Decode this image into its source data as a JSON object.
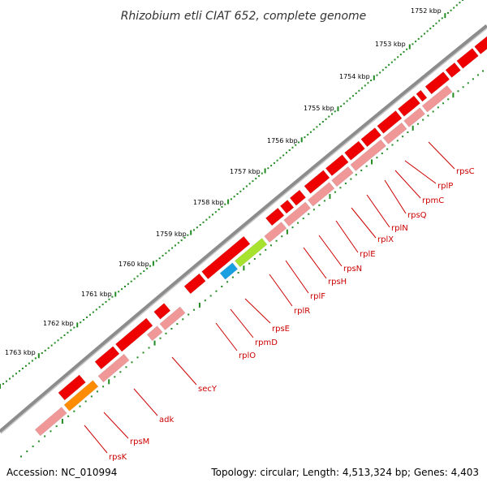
{
  "title": "Rhizobium etli CIAT 652, complete genome",
  "footer": {
    "accession": "Accession: NC_010994",
    "summary": "Topology: circular; Length: 4,513,324 bp; Genes: 4,403"
  },
  "colors": {
    "backbone": "#8c8c8c",
    "forward_gene": "#ee0000",
    "gene_shadow": "#f09898",
    "label": "#cc0000",
    "ticks": "#228b22",
    "secY": "#a6e22e",
    "adk": "#1a9fe0",
    "orange_gene": "#ff8c00"
  },
  "scale": {
    "unit": "kbp",
    "labels": [
      "1752 kbp",
      "1753 kbp",
      "1754 kbp",
      "1755 kbp",
      "1756 kbp",
      "1757 kbp",
      "1758 kbp",
      "1759 kbp",
      "1760 kbp",
      "1761 kbp",
      "1762 kbp",
      "1763 kbp"
    ]
  },
  "genes": [
    {
      "name": "rpsC"
    },
    {
      "name": "rplP"
    },
    {
      "name": "rpmC"
    },
    {
      "name": "rpsQ"
    },
    {
      "name": "rplN"
    },
    {
      "name": "rplX"
    },
    {
      "name": "rplE"
    },
    {
      "name": "rpsN"
    },
    {
      "name": "rpsH"
    },
    {
      "name": "rplF"
    },
    {
      "name": "rplR"
    },
    {
      "name": "rpsE"
    },
    {
      "name": "rpmD"
    },
    {
      "name": "rplO"
    },
    {
      "name": "secY"
    },
    {
      "name": "adk"
    },
    {
      "name": "rpsM"
    },
    {
      "name": "rpsK"
    }
  ]
}
